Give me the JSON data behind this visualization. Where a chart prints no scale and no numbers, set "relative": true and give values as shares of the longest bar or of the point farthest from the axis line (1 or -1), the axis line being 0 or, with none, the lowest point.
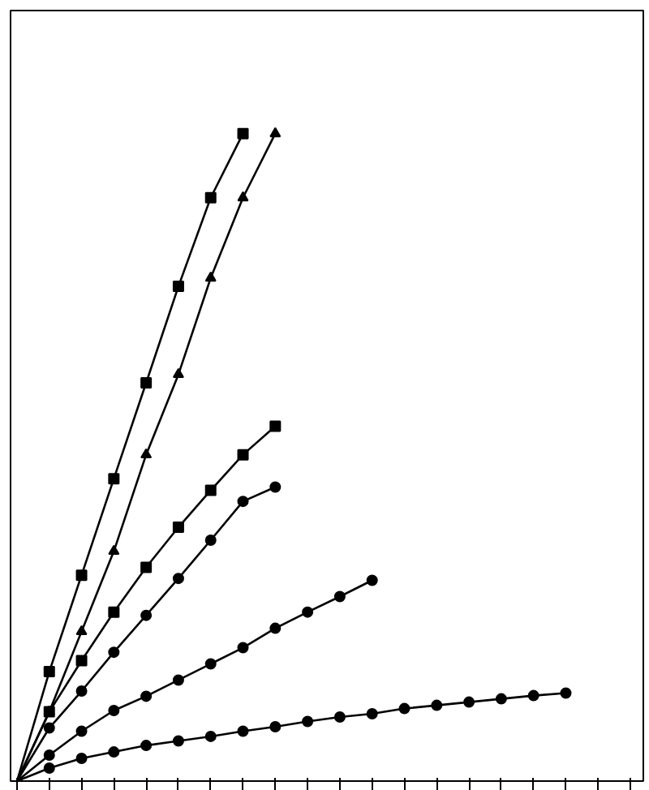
{
  "chart_data": {
    "type": "line",
    "relative": true,
    "categories": [
      null,
      null,
      null,
      null,
      null,
      null,
      null,
      null,
      null,
      null,
      null,
      null,
      null,
      null,
      null,
      null,
      null,
      null,
      null,
      null
    ],
    "series": [
      {
        "color": "#000000",
        "marker": "square",
        "values": [
          0,
          0.169,
          0.318,
          0.467,
          0.615,
          0.764,
          0.901,
          1.0,
          null,
          null,
          null,
          null,
          null,
          null,
          null,
          null,
          null,
          null,
          null,
          null
        ]
      },
      {
        "color": "#000000",
        "marker": "triangle",
        "values": [
          0,
          0.107,
          0.231,
          0.355,
          0.504,
          0.628,
          0.777,
          0.901,
          1.0,
          null,
          null,
          null,
          null,
          null,
          null,
          null,
          null,
          null,
          null,
          null
        ]
      },
      {
        "color": "#000000",
        "marker": "square",
        "values": [
          0,
          0.107,
          0.186,
          0.261,
          0.33,
          0.392,
          0.449,
          0.504,
          0.548,
          null,
          null,
          null,
          null,
          null,
          null,
          null,
          null,
          null,
          null,
          null
        ]
      },
      {
        "color": "#000000",
        "marker": "circle",
        "values": [
          0,
          0.082,
          0.139,
          0.199,
          0.256,
          0.313,
          0.372,
          0.432,
          0.454,
          null,
          null,
          null,
          null,
          null,
          null,
          null,
          null,
          null,
          null,
          null
        ]
      },
      {
        "color": "#000000",
        "marker": "circle",
        "values": [
          0,
          0.04,
          0.077,
          0.109,
          0.131,
          0.156,
          0.181,
          0.206,
          0.236,
          0.261,
          0.285,
          0.31,
          null,
          null,
          null,
          null,
          null,
          null,
          null,
          null
        ]
      },
      {
        "color": "#000000",
        "marker": "circle",
        "values": [
          0,
          0.02,
          0.035,
          0.045,
          0.055,
          0.062,
          0.069,
          0.077,
          0.084,
          0.092,
          0.099,
          0.104,
          0.112,
          0.117,
          0.122,
          0.127,
          0.132,
          0.136,
          null,
          null
        ]
      }
    ],
    "grid": false
  }
}
